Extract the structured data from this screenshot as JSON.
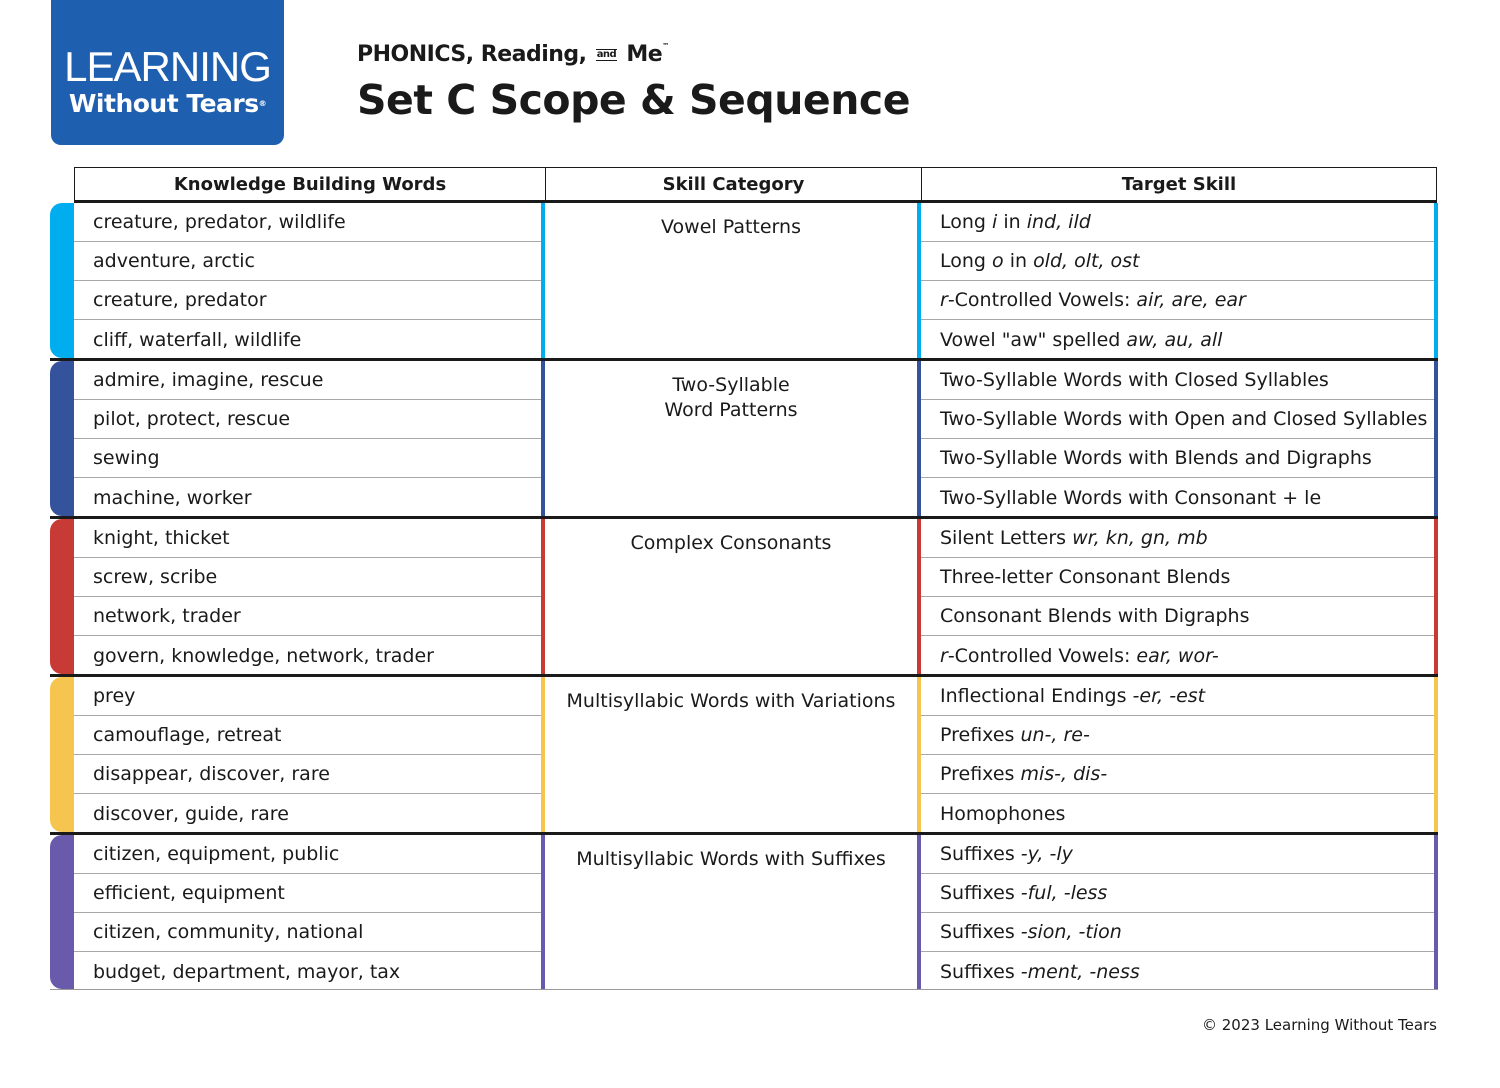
{
  "header": {
    "logo_line1": "LEARNING",
    "logo_line2": "Without Tears",
    "logo_mark": "®",
    "brand_phonics": "PHONICS, Reading,",
    "brand_and": "and",
    "brand_me": "Me",
    "brand_tm": "™",
    "title": "Set C Scope & Sequence"
  },
  "table": {
    "headers": [
      "Knowledge Building Words",
      "Skill Category",
      "Target Skill"
    ],
    "groups": [
      {
        "color": "#00aeef",
        "category": [
          "Vowel Patterns"
        ],
        "words": [
          "creature, predator, wildlife",
          "adventure, arctic",
          "creature, predator",
          "cliff, waterfall, wildlife"
        ],
        "skills": [
          [
            {
              "t": "Long "
            },
            {
              "t": "i",
              "i": true
            },
            {
              "t": " in "
            },
            {
              "t": "ind, ild",
              "i": true
            }
          ],
          [
            {
              "t": "Long "
            },
            {
              "t": "o",
              "i": true
            },
            {
              "t": " in "
            },
            {
              "t": "old, olt, ost",
              "i": true
            }
          ],
          [
            {
              "t": "r",
              "i": true
            },
            {
              "t": "-Controlled Vowels: "
            },
            {
              "t": "air, are, ear",
              "i": true
            }
          ],
          [
            {
              "t": "Vowel \"aw\" spelled "
            },
            {
              "t": "aw, au, all",
              "i": true
            }
          ]
        ]
      },
      {
        "color": "#34539c",
        "category": [
          "Two-Syllable",
          "Word Patterns"
        ],
        "words": [
          "admire, imagine, rescue",
          "pilot, protect, rescue",
          "sewing",
          "machine, worker"
        ],
        "skills": [
          [
            {
              "t": "Two-Syllable Words with Closed Syllables"
            }
          ],
          [
            {
              "t": "Two-Syllable Words with Open and Closed Syllables"
            }
          ],
          [
            {
              "t": "Two-Syllable Words with Blends and Digraphs"
            }
          ],
          [
            {
              "t": "Two-Syllable Words with Consonant + le"
            }
          ]
        ]
      },
      {
        "color": "#c83a35",
        "category": [
          "Complex Consonants"
        ],
        "words": [
          "knight, thicket",
          "screw, scribe",
          "network, trader",
          "govern, knowledge, network, trader"
        ],
        "skills": [
          [
            {
              "t": "Silent Letters "
            },
            {
              "t": "wr, kn, gn, mb",
              "i": true
            }
          ],
          [
            {
              "t": "Three-letter Consonant Blends"
            }
          ],
          [
            {
              "t": "Consonant Blends with Digraphs"
            }
          ],
          [
            {
              "t": "r",
              "i": true
            },
            {
              "t": "-Controlled Vowels: "
            },
            {
              "t": "ear, wor-",
              "i": true
            }
          ]
        ]
      },
      {
        "color": "#f6c54f",
        "category": [
          "Multisyllabic Words with Variations"
        ],
        "words": [
          "prey",
          "camouflage, retreat",
          "disappear, discover, rare",
          "discover, guide, rare"
        ],
        "skills": [
          [
            {
              "t": "Inflectional Endings "
            },
            {
              "t": "-er, -est",
              "i": true
            }
          ],
          [
            {
              "t": "Prefixes "
            },
            {
              "t": "un-, re-",
              "i": true
            }
          ],
          [
            {
              "t": "Prefixes "
            },
            {
              "t": "mis-, dis-",
              "i": true
            }
          ],
          [
            {
              "t": "Homophones"
            }
          ]
        ]
      },
      {
        "color": "#6a5aab",
        "category": [
          "Multisyllabic Words with Suffixes"
        ],
        "words": [
          "citizen, equipment, public",
          "efficient, equipment",
          "citizen, community, national",
          "budget, department, mayor, tax"
        ],
        "skills": [
          [
            {
              "t": "Suffixes "
            },
            {
              "t": "-y, -ly",
              "i": true
            }
          ],
          [
            {
              "t": "Suffixes "
            },
            {
              "t": "-ful, -less",
              "i": true
            }
          ],
          [
            {
              "t": "Suffixes "
            },
            {
              "t": "-sion, -tion",
              "i": true
            }
          ],
          [
            {
              "t": "Suffixes "
            },
            {
              "t": "-ment, -ness",
              "i": true
            }
          ]
        ]
      }
    ]
  },
  "footer": {
    "copyright": "© 2023 Learning Without Tears"
  }
}
